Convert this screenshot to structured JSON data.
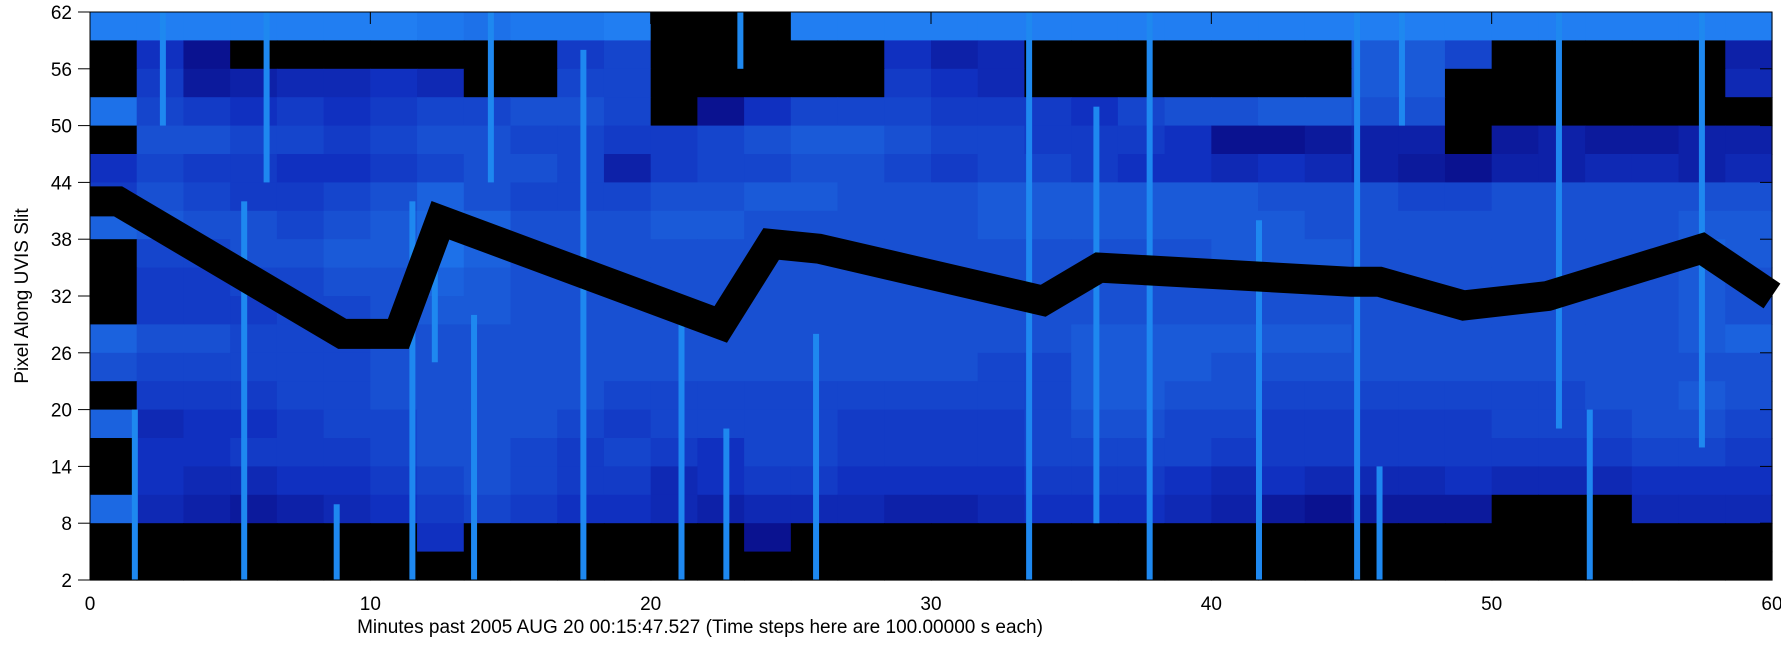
{
  "chart_data": {
    "type": "heatmap",
    "xlabel": "Minutes past 2005 AUG 20 00:15:47.527 (Time steps here are 100.00000 s each)",
    "ylabel": "Pixel Along UVIS Slit",
    "xlim": [
      0,
      60
    ],
    "ylim": [
      2,
      62
    ],
    "xticks": [
      0,
      10,
      20,
      30,
      40,
      50,
      60
    ],
    "yticks": [
      2,
      8,
      14,
      20,
      26,
      32,
      38,
      44,
      50,
      56,
      62
    ],
    "zlim": [
      0,
      100
    ],
    "colormap": [
      "#000000",
      "#0a1290",
      "#1030c0",
      "#1a5ad8",
      "#1e78ee",
      "#2a90ff"
    ],
    "z": [
      [
        85,
        85,
        85,
        85,
        85,
        85,
        85,
        80,
        75,
        80,
        80,
        85,
        0,
        0,
        0,
        85,
        85,
        85,
        85,
        85,
        85,
        85,
        85,
        85,
        85,
        85,
        85,
        85,
        85,
        85,
        85,
        85,
        85,
        85,
        85,
        85
      ],
      [
        0,
        40,
        20,
        0,
        0,
        0,
        0,
        0,
        0,
        0,
        45,
        50,
        0,
        0,
        0,
        0,
        0,
        40,
        30,
        35,
        0,
        0,
        0,
        0,
        0,
        0,
        0,
        60,
        60,
        50,
        0,
        0,
        0,
        0,
        0,
        30
      ],
      [
        0,
        45,
        25,
        30,
        35,
        35,
        40,
        35,
        0,
        0,
        50,
        50,
        0,
        0,
        0,
        0,
        0,
        45,
        40,
        35,
        0,
        0,
        0,
        0,
        0,
        0,
        0,
        60,
        60,
        0,
        0,
        0,
        0,
        0,
        0,
        35
      ],
      [
        75,
        50,
        45,
        40,
        45,
        40,
        45,
        50,
        50,
        55,
        55,
        50,
        0,
        20,
        40,
        50,
        50,
        50,
        45,
        45,
        45,
        40,
        50,
        55,
        55,
        60,
        60,
        55,
        55,
        0,
        0,
        0,
        0,
        0,
        0,
        0
      ],
      [
        0,
        55,
        55,
        50,
        50,
        45,
        50,
        55,
        55,
        50,
        50,
        45,
        45,
        50,
        55,
        60,
        60,
        55,
        50,
        50,
        45,
        45,
        45,
        40,
        20,
        20,
        25,
        30,
        30,
        0,
        25,
        30,
        25,
        25,
        30,
        30
      ],
      [
        40,
        50,
        45,
        45,
        40,
        40,
        45,
        50,
        55,
        55,
        50,
        30,
        45,
        50,
        50,
        55,
        55,
        50,
        45,
        50,
        50,
        45,
        40,
        40,
        35,
        40,
        35,
        30,
        25,
        20,
        30,
        30,
        35,
        35,
        30,
        35
      ],
      [
        45,
        55,
        50,
        45,
        45,
        50,
        55,
        65,
        55,
        50,
        50,
        50,
        55,
        55,
        60,
        60,
        55,
        55,
        55,
        60,
        60,
        60,
        60,
        60,
        60,
        55,
        55,
        55,
        50,
        50,
        55,
        55,
        55,
        55,
        55,
        55
      ],
      [
        65,
        60,
        55,
        55,
        50,
        55,
        60,
        70,
        65,
        55,
        55,
        55,
        60,
        60,
        55,
        55,
        55,
        55,
        55,
        60,
        60,
        60,
        60,
        60,
        60,
        60,
        55,
        55,
        55,
        55,
        55,
        55,
        55,
        55,
        60,
        60
      ],
      [
        0,
        50,
        50,
        55,
        55,
        60,
        60,
        75,
        65,
        55,
        55,
        55,
        55,
        55,
        55,
        55,
        55,
        55,
        55,
        55,
        55,
        55,
        55,
        55,
        60,
        60,
        60,
        55,
        55,
        55,
        55,
        55,
        55,
        55,
        65,
        60
      ],
      [
        0,
        45,
        45,
        50,
        50,
        55,
        55,
        65,
        60,
        55,
        55,
        55,
        55,
        55,
        55,
        55,
        55,
        55,
        55,
        55,
        55,
        55,
        55,
        55,
        55,
        55,
        55,
        55,
        55,
        55,
        55,
        55,
        55,
        55,
        60,
        55
      ],
      [
        0,
        45,
        45,
        45,
        50,
        50,
        55,
        60,
        60,
        55,
        55,
        55,
        55,
        55,
        55,
        55,
        55,
        55,
        55,
        55,
        55,
        55,
        55,
        55,
        55,
        55,
        55,
        55,
        55,
        55,
        55,
        55,
        55,
        55,
        60,
        55
      ],
      [
        65,
        55,
        55,
        50,
        50,
        50,
        55,
        55,
        55,
        55,
        55,
        55,
        55,
        55,
        55,
        55,
        55,
        55,
        55,
        55,
        55,
        60,
        60,
        60,
        60,
        60,
        60,
        55,
        55,
        55,
        55,
        55,
        55,
        55,
        60,
        65
      ],
      [
        55,
        50,
        50,
        50,
        50,
        50,
        55,
        55,
        55,
        55,
        55,
        55,
        55,
        55,
        55,
        55,
        55,
        55,
        55,
        50,
        50,
        60,
        60,
        60,
        55,
        55,
        55,
        55,
        55,
        55,
        55,
        55,
        55,
        55,
        55,
        55
      ],
      [
        0,
        45,
        45,
        45,
        50,
        50,
        55,
        55,
        55,
        55,
        55,
        50,
        50,
        50,
        50,
        50,
        50,
        50,
        50,
        50,
        50,
        60,
        60,
        55,
        55,
        50,
        50,
        50,
        50,
        50,
        50,
        50,
        55,
        55,
        60,
        55
      ],
      [
        65,
        35,
        40,
        40,
        45,
        50,
        50,
        55,
        55,
        55,
        50,
        45,
        50,
        50,
        50,
        50,
        45,
        45,
        45,
        45,
        50,
        55,
        55,
        50,
        50,
        45,
        45,
        45,
        45,
        45,
        50,
        50,
        50,
        55,
        55,
        50
      ],
      [
        0,
        40,
        40,
        45,
        45,
        45,
        50,
        55,
        55,
        50,
        45,
        50,
        45,
        40,
        50,
        50,
        45,
        45,
        45,
        45,
        50,
        50,
        50,
        50,
        45,
        45,
        45,
        45,
        45,
        45,
        45,
        45,
        45,
        50,
        50,
        45
      ],
      [
        0,
        40,
        35,
        35,
        40,
        40,
        45,
        50,
        55,
        50,
        45,
        45,
        35,
        40,
        45,
        45,
        40,
        40,
        40,
        40,
        45,
        45,
        45,
        40,
        35,
        40,
        35,
        35,
        35,
        40,
        35,
        35,
        35,
        40,
        40,
        40
      ],
      [
        70,
        35,
        30,
        25,
        30,
        35,
        40,
        45,
        50,
        45,
        40,
        40,
        35,
        30,
        35,
        35,
        35,
        30,
        30,
        35,
        40,
        40,
        40,
        35,
        30,
        25,
        20,
        25,
        25,
        25,
        0,
        0,
        0,
        35,
        35,
        35
      ],
      [
        0,
        0,
        0,
        0,
        0,
        0,
        0,
        40,
        0,
        0,
        0,
        0,
        0,
        0,
        20,
        0,
        0,
        0,
        0,
        0,
        0,
        0,
        0,
        0,
        0,
        0,
        0,
        0,
        0,
        0,
        0,
        0,
        0,
        0,
        0,
        0
      ],
      [
        0,
        0,
        0,
        0,
        0,
        0,
        0,
        0,
        0,
        0,
        0,
        0,
        0,
        0,
        0,
        0,
        0,
        0,
        0,
        0,
        0,
        0,
        0,
        0,
        0,
        0,
        0,
        0,
        0,
        0,
        0,
        0,
        0,
        0,
        0,
        0
      ]
    ],
    "streak_color": "#1e88f0",
    "streaks": [
      [
        1.6,
        2,
        20
      ],
      [
        2.6,
        50,
        62
      ],
      [
        5.5,
        2,
        42
      ],
      [
        6.3,
        44,
        62
      ],
      [
        8.8,
        2,
        10
      ],
      [
        11.5,
        2,
        42
      ],
      [
        12.3,
        25,
        40
      ],
      [
        13.7,
        2,
        30
      ],
      [
        14.3,
        44,
        62
      ],
      [
        17.6,
        2,
        58
      ],
      [
        21.1,
        2,
        30
      ],
      [
        22.7,
        2,
        18
      ],
      [
        23.2,
        56,
        62
      ],
      [
        25.9,
        2,
        28
      ],
      [
        33.5,
        2,
        62
      ],
      [
        35.9,
        8,
        52
      ],
      [
        37.8,
        2,
        62
      ],
      [
        41.7,
        2,
        40
      ],
      [
        45.2,
        2,
        62
      ],
      [
        46.0,
        2,
        14
      ],
      [
        46.8,
        50,
        62
      ],
      [
        52.4,
        18,
        62
      ],
      [
        53.5,
        2,
        20
      ],
      [
        57.5,
        16,
        62
      ]
    ],
    "track": {
      "color": "#000000",
      "x": [
        0,
        1,
        9,
        11,
        12.5,
        22.5,
        24.3,
        26,
        34,
        36,
        45,
        46,
        49,
        52,
        57.5,
        60
      ],
      "y": [
        42,
        42,
        28,
        28,
        40,
        29,
        37.5,
        37,
        31.5,
        35,
        33.5,
        33.5,
        31,
        32,
        37,
        32
      ]
    }
  }
}
